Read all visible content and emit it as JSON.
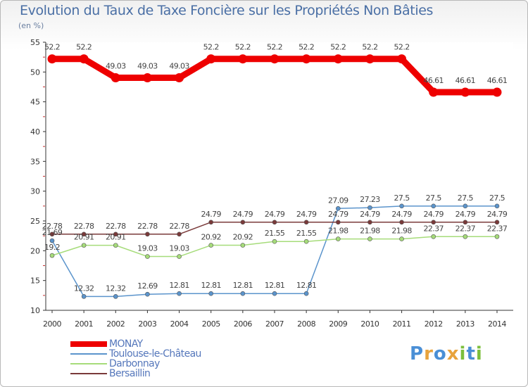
{
  "brand": "Proxiti",
  "chart_data": {
    "type": "line",
    "title": "Evolution du Taux de Taxe Foncière sur les Propriétés Non Bâties",
    "ylabel": "(en %)",
    "xlabel": "",
    "ylim": [
      10,
      55
    ],
    "yticks": [
      10,
      15,
      20,
      25,
      30,
      35,
      40,
      45,
      50,
      55
    ],
    "x": [
      "2000",
      "2001",
      "2002",
      "2003",
      "2004",
      "2005",
      "2006",
      "2007",
      "2008",
      "2009",
      "2010",
      "2011",
      "2012",
      "2013",
      "2014"
    ],
    "series": [
      {
        "name": "MONAY",
        "color": "#ee0000",
        "values": [
          52.2,
          52.2,
          49.03,
          49.03,
          49.03,
          52.2,
          52.2,
          52.2,
          52.2,
          52.2,
          52.2,
          52.2,
          46.61,
          46.61,
          46.61
        ],
        "labels": [
          "52.2",
          "52.2",
          "49.03",
          "49.03",
          "49.03",
          "52.2",
          "52.2",
          "52.2",
          "52.2",
          "52.2",
          "52.2",
          "52.2",
          "46.61",
          "46.61",
          "46.61"
        ]
      },
      {
        "name": "Toulouse-le-Château",
        "color": "#5b94cc",
        "values": [
          21.69,
          12.32,
          12.32,
          12.69,
          12.81,
          12.81,
          12.81,
          12.81,
          12.81,
          27.09,
          27.23,
          27.5,
          27.5,
          27.5,
          27.5
        ],
        "labels": [
          "21.69",
          "12.32",
          "12.32",
          "12.69",
          "12.81",
          "12.81",
          "12.81",
          "12.81",
          "12.81",
          "27.09",
          "27.23",
          "27.5",
          "27.5",
          "27.5",
          "27.5"
        ]
      },
      {
        "name": "Darbonnay",
        "color": "#a6dc7a",
        "values": [
          19.2,
          20.91,
          20.91,
          19.03,
          19.03,
          20.92,
          20.92,
          21.55,
          21.55,
          21.98,
          21.98,
          21.98,
          22.37,
          22.37,
          22.37
        ],
        "labels": [
          "19.2",
          "20.91",
          "20.91",
          "19.03",
          "19.03",
          "20.92",
          "20.92",
          "21.55",
          "21.55",
          "21.98",
          "21.98",
          "21.98",
          "22.37",
          "22.37",
          "22.37"
        ]
      },
      {
        "name": "Bersaillin",
        "color": "#7a3a3a",
        "values": [
          22.78,
          22.78,
          22.78,
          22.78,
          22.78,
          24.79,
          24.79,
          24.79,
          24.79,
          24.79,
          24.79,
          24.79,
          24.79,
          24.79,
          24.79
        ],
        "labels": [
          "22.78",
          "22.78",
          "22.78",
          "22.78",
          "22.78",
          "24.79",
          "24.79",
          "24.79",
          "24.79",
          "24.79",
          "24.79",
          "24.79",
          "24.79",
          "24.79",
          "24.79"
        ]
      }
    ]
  }
}
